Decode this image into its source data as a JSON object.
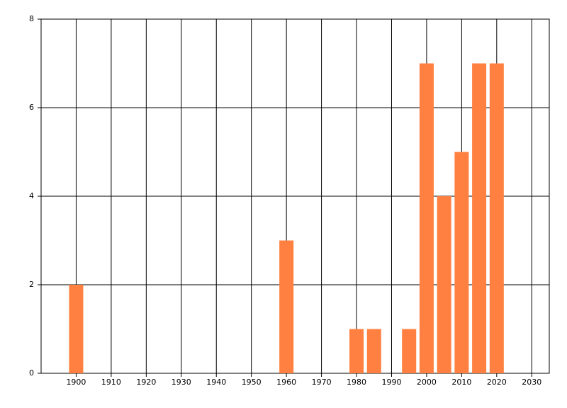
{
  "chart_data": {
    "type": "bar",
    "x": [
      1900,
      1960,
      1980,
      1985,
      1995,
      2000,
      2005,
      2010,
      2015,
      2020
    ],
    "values": [
      2,
      3,
      1,
      1,
      1,
      7,
      4,
      5,
      7,
      7
    ],
    "color": "#ff8040",
    "xlim": [
      1890,
      2035
    ],
    "xticks": [
      1900,
      1910,
      1920,
      1930,
      1940,
      1950,
      1960,
      1970,
      1980,
      1990,
      2000,
      2010,
      2020,
      2030
    ],
    "ylim": [
      0,
      8
    ],
    "yticks": [
      0,
      2,
      4,
      6,
      8
    ],
    "grid": true
  }
}
